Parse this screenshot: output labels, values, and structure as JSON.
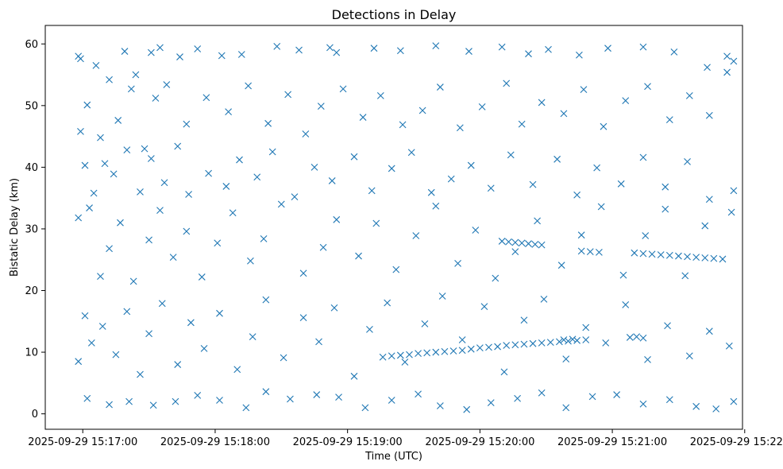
{
  "chart_data": {
    "type": "scatter",
    "title": "Detections in Delay",
    "xlabel": "Time (UTC)",
    "ylabel": "Bistatic Delay (km)",
    "x_unit": "UTC time (2025-09-29)",
    "xlim": [
      "2025-09-29 15:16:43",
      "2025-09-29 15:21:59"
    ],
    "ylim": [
      -2.5,
      63
    ],
    "xticks": [
      "2025-09-29 15:17:00",
      "2025-09-29 15:18:00",
      "2025-09-29 15:19:00",
      "2025-09-29 15:20:00",
      "2025-09-29 15:21:00",
      "2025-09-29 15:22:00"
    ],
    "yticks": [
      0,
      10,
      20,
      30,
      40,
      50,
      60
    ],
    "grid": false,
    "marker": "x",
    "color": "#1f77b4",
    "series": [
      {
        "points": [
          [
            "15:16:58",
            58.0
          ],
          [
            "15:16:59",
            57.6
          ],
          [
            "15:17:06",
            56.5
          ],
          [
            "15:17:12",
            54.2
          ],
          [
            "15:17:19",
            58.8
          ],
          [
            "15:17:24",
            55.0
          ],
          [
            "15:17:31",
            58.6
          ],
          [
            "15:17:35",
            59.4
          ],
          [
            "15:17:44",
            57.9
          ],
          [
            "15:17:52",
            59.2
          ],
          [
            "15:18:03",
            58.1
          ],
          [
            "15:18:12",
            58.3
          ],
          [
            "15:18:28",
            59.6
          ],
          [
            "15:18:38",
            59.0
          ],
          [
            "15:18:52",
            59.4
          ],
          [
            "15:18:55",
            58.6
          ],
          [
            "15:19:12",
            59.3
          ],
          [
            "15:19:24",
            58.9
          ],
          [
            "15:19:40",
            59.7
          ],
          [
            "15:19:55",
            58.8
          ],
          [
            "15:20:10",
            59.5
          ],
          [
            "15:20:22",
            58.4
          ],
          [
            "15:20:31",
            59.1
          ],
          [
            "15:20:45",
            58.2
          ],
          [
            "15:20:58",
            59.3
          ],
          [
            "15:21:14",
            59.5
          ],
          [
            "15:21:28",
            58.7
          ],
          [
            "15:21:43",
            56.2
          ],
          [
            "15:21:52",
            58.0
          ],
          [
            "15:21:55",
            57.2
          ],
          [
            "15:16:59",
            45.8
          ],
          [
            "15:17:02",
            50.1
          ],
          [
            "15:17:08",
            44.8
          ],
          [
            "15:17:16",
            47.6
          ],
          [
            "15:17:22",
            52.7
          ],
          [
            "15:17:28",
            43.0
          ],
          [
            "15:17:33",
            51.2
          ],
          [
            "15:17:38",
            53.4
          ],
          [
            "15:17:47",
            47.0
          ],
          [
            "15:17:56",
            51.3
          ],
          [
            "15:18:06",
            49.0
          ],
          [
            "15:18:15",
            53.2
          ],
          [
            "15:18:24",
            47.1
          ],
          [
            "15:18:33",
            51.8
          ],
          [
            "15:18:41",
            45.4
          ],
          [
            "15:18:48",
            49.9
          ],
          [
            "15:18:58",
            52.7
          ],
          [
            "15:19:07",
            48.1
          ],
          [
            "15:19:15",
            51.6
          ],
          [
            "15:19:25",
            46.9
          ],
          [
            "15:19:34",
            49.2
          ],
          [
            "15:19:42",
            53.0
          ],
          [
            "15:19:51",
            46.4
          ],
          [
            "15:20:01",
            49.8
          ],
          [
            "15:20:12",
            53.6
          ],
          [
            "15:20:19",
            47.0
          ],
          [
            "15:20:28",
            50.5
          ],
          [
            "15:20:38",
            48.7
          ],
          [
            "15:20:47",
            52.6
          ],
          [
            "15:20:56",
            46.6
          ],
          [
            "15:21:06",
            50.8
          ],
          [
            "15:21:16",
            53.1
          ],
          [
            "15:21:26",
            47.7
          ],
          [
            "15:21:35",
            51.6
          ],
          [
            "15:21:44",
            48.4
          ],
          [
            "15:21:52",
            55.4
          ],
          [
            "15:17:01",
            40.3
          ],
          [
            "15:17:05",
            35.8
          ],
          [
            "15:17:10",
            40.6
          ],
          [
            "15:17:14",
            38.9
          ],
          [
            "15:17:20",
            42.8
          ],
          [
            "15:17:26",
            36.0
          ],
          [
            "15:17:31",
            41.4
          ],
          [
            "15:17:37",
            37.5
          ],
          [
            "15:17:43",
            43.4
          ],
          [
            "15:17:48",
            35.6
          ],
          [
            "15:17:57",
            39.0
          ],
          [
            "15:18:05",
            36.9
          ],
          [
            "15:18:11",
            41.2
          ],
          [
            "15:18:19",
            38.4
          ],
          [
            "15:18:26",
            42.5
          ],
          [
            "15:18:36",
            35.2
          ],
          [
            "15:18:45",
            40.0
          ],
          [
            "15:18:53",
            37.8
          ],
          [
            "15:19:03",
            41.7
          ],
          [
            "15:19:11",
            36.2
          ],
          [
            "15:19:20",
            39.8
          ],
          [
            "15:19:29",
            42.4
          ],
          [
            "15:19:38",
            35.9
          ],
          [
            "15:19:47",
            38.1
          ],
          [
            "15:19:56",
            40.3
          ],
          [
            "15:20:05",
            36.6
          ],
          [
            "15:20:14",
            42.0
          ],
          [
            "15:20:24",
            37.2
          ],
          [
            "15:20:35",
            41.3
          ],
          [
            "15:20:44",
            35.5
          ],
          [
            "15:20:53",
            39.9
          ],
          [
            "15:21:04",
            37.3
          ],
          [
            "15:21:14",
            41.6
          ],
          [
            "15:21:24",
            36.8
          ],
          [
            "15:21:34",
            40.9
          ],
          [
            "15:21:44",
            34.8
          ],
          [
            "15:21:55",
            36.2
          ],
          [
            "15:16:58",
            31.8
          ],
          [
            "15:17:03",
            33.4
          ],
          [
            "15:17:08",
            22.3
          ],
          [
            "15:17:12",
            26.8
          ],
          [
            "15:17:17",
            31.0
          ],
          [
            "15:17:23",
            21.5
          ],
          [
            "15:17:30",
            28.2
          ],
          [
            "15:17:35",
            33.0
          ],
          [
            "15:17:41",
            25.4
          ],
          [
            "15:17:47",
            29.6
          ],
          [
            "15:17:54",
            22.2
          ],
          [
            "15:18:01",
            27.7
          ],
          [
            "15:18:08",
            32.6
          ],
          [
            "15:18:16",
            24.8
          ],
          [
            "15:18:22",
            28.4
          ],
          [
            "15:18:30",
            34.0
          ],
          [
            "15:18:40",
            22.8
          ],
          [
            "15:18:49",
            27.0
          ],
          [
            "15:18:55",
            31.5
          ],
          [
            "15:19:05",
            25.6
          ],
          [
            "15:19:13",
            30.9
          ],
          [
            "15:19:22",
            23.4
          ],
          [
            "15:19:31",
            28.9
          ],
          [
            "15:19:40",
            33.7
          ],
          [
            "15:19:50",
            24.4
          ],
          [
            "15:19:58",
            29.8
          ],
          [
            "15:20:07",
            22.0
          ],
          [
            "15:20:16",
            26.3
          ],
          [
            "15:20:26",
            31.3
          ],
          [
            "15:20:37",
            24.1
          ],
          [
            "15:20:46",
            29.0
          ],
          [
            "15:20:55",
            33.6
          ],
          [
            "15:21:05",
            22.5
          ],
          [
            "15:21:15",
            28.9
          ],
          [
            "15:21:24",
            33.2
          ],
          [
            "15:21:33",
            22.4
          ],
          [
            "15:21:42",
            30.5
          ],
          [
            "15:21:54",
            32.7
          ],
          [
            "15:16:58",
            8.5
          ],
          [
            "15:17:01",
            15.9
          ],
          [
            "15:17:04",
            11.5
          ],
          [
            "15:17:09",
            14.2
          ],
          [
            "15:17:15",
            9.6
          ],
          [
            "15:17:20",
            16.6
          ],
          [
            "15:17:26",
            6.4
          ],
          [
            "15:17:30",
            13.0
          ],
          [
            "15:17:36",
            17.9
          ],
          [
            "15:17:43",
            8.0
          ],
          [
            "15:17:49",
            14.8
          ],
          [
            "15:17:55",
            10.6
          ],
          [
            "15:18:02",
            16.3
          ],
          [
            "15:18:10",
            7.2
          ],
          [
            "15:18:17",
            12.5
          ],
          [
            "15:18:23",
            18.5
          ],
          [
            "15:18:31",
            9.1
          ],
          [
            "15:18:40",
            15.6
          ],
          [
            "15:18:47",
            11.7
          ],
          [
            "15:18:54",
            17.2
          ],
          [
            "15:19:03",
            6.1
          ],
          [
            "15:19:10",
            13.7
          ],
          [
            "15:19:18",
            18.0
          ],
          [
            "15:19:26",
            8.4
          ],
          [
            "15:19:35",
            14.6
          ],
          [
            "15:19:43",
            19.1
          ],
          [
            "15:19:52",
            12.0
          ],
          [
            "15:20:02",
            17.4
          ],
          [
            "15:20:11",
            6.8
          ],
          [
            "15:20:20",
            15.2
          ],
          [
            "15:20:29",
            18.6
          ],
          [
            "15:20:39",
            8.9
          ],
          [
            "15:20:48",
            14.0
          ],
          [
            "15:20:57",
            11.5
          ],
          [
            "15:21:06",
            17.7
          ],
          [
            "15:21:16",
            8.8
          ],
          [
            "15:21:25",
            14.3
          ],
          [
            "15:21:35",
            9.4
          ],
          [
            "15:21:44",
            13.4
          ],
          [
            "15:21:53",
            11.0
          ],
          [
            "15:17:02",
            2.5
          ],
          [
            "15:17:12",
            1.5
          ],
          [
            "15:17:21",
            2.0
          ],
          [
            "15:17:32",
            1.4
          ],
          [
            "15:17:42",
            2.0
          ],
          [
            "15:17:52",
            3.0
          ],
          [
            "15:18:02",
            2.2
          ],
          [
            "15:18:14",
            1.0
          ],
          [
            "15:18:23",
            3.6
          ],
          [
            "15:18:34",
            2.4
          ],
          [
            "15:18:46",
            3.1
          ],
          [
            "15:18:56",
            2.7
          ],
          [
            "15:19:08",
            1.0
          ],
          [
            "15:19:20",
            2.2
          ],
          [
            "15:19:32",
            3.2
          ],
          [
            "15:19:42",
            1.3
          ],
          [
            "15:19:54",
            0.7
          ],
          [
            "15:20:05",
            1.8
          ],
          [
            "15:20:17",
            2.5
          ],
          [
            "15:20:28",
            3.4
          ],
          [
            "15:20:39",
            1.0
          ],
          [
            "15:20:51",
            2.8
          ],
          [
            "15:21:02",
            3.1
          ],
          [
            "15:21:14",
            1.6
          ],
          [
            "15:21:26",
            2.3
          ],
          [
            "15:21:38",
            1.2
          ],
          [
            "15:21:47",
            0.8
          ],
          [
            "15:21:55",
            2.0
          ],
          [
            "15:19:16",
            9.2
          ],
          [
            "15:19:20",
            9.4
          ],
          [
            "15:19:24",
            9.5
          ],
          [
            "15:19:28",
            9.6
          ],
          [
            "15:19:32",
            9.8
          ],
          [
            "15:19:36",
            9.9
          ],
          [
            "15:19:40",
            10.0
          ],
          [
            "15:19:44",
            10.1
          ],
          [
            "15:19:48",
            10.2
          ],
          [
            "15:19:52",
            10.3
          ],
          [
            "15:19:56",
            10.5
          ],
          [
            "15:20:00",
            10.7
          ],
          [
            "15:20:04",
            10.8
          ],
          [
            "15:20:08",
            10.9
          ],
          [
            "15:20:12",
            11.1
          ],
          [
            "15:20:16",
            11.2
          ],
          [
            "15:20:20",
            11.3
          ],
          [
            "15:20:24",
            11.4
          ],
          [
            "15:20:28",
            11.5
          ],
          [
            "15:20:32",
            11.6
          ],
          [
            "15:20:36",
            11.7
          ],
          [
            "15:20:40",
            11.8
          ],
          [
            "15:20:44",
            11.9
          ],
          [
            "15:20:48",
            12.0
          ],
          [
            "15:20:10",
            28.0
          ],
          [
            "15:20:13",
            27.9
          ],
          [
            "15:20:16",
            27.8
          ],
          [
            "15:20:19",
            27.7
          ],
          [
            "15:20:22",
            27.6
          ],
          [
            "15:20:25",
            27.5
          ],
          [
            "15:20:28",
            27.4
          ],
          [
            "15:20:46",
            26.4
          ],
          [
            "15:20:50",
            26.3
          ],
          [
            "15:20:54",
            26.2
          ],
          [
            "15:21:10",
            26.1
          ],
          [
            "15:21:14",
            26.0
          ],
          [
            "15:21:18",
            25.9
          ],
          [
            "15:21:22",
            25.8
          ],
          [
            "15:21:26",
            25.7
          ],
          [
            "15:21:30",
            25.6
          ],
          [
            "15:21:34",
            25.5
          ],
          [
            "15:21:38",
            25.4
          ],
          [
            "15:21:42",
            25.3
          ],
          [
            "15:21:46",
            25.2
          ],
          [
            "15:21:50",
            25.1
          ],
          [
            "15:21:08",
            12.4
          ],
          [
            "15:21:11",
            12.5
          ],
          [
            "15:21:14",
            12.3
          ],
          [
            "15:20:38",
            12.0
          ],
          [
            "15:20:42",
            12.1
          ]
        ]
      }
    ]
  }
}
